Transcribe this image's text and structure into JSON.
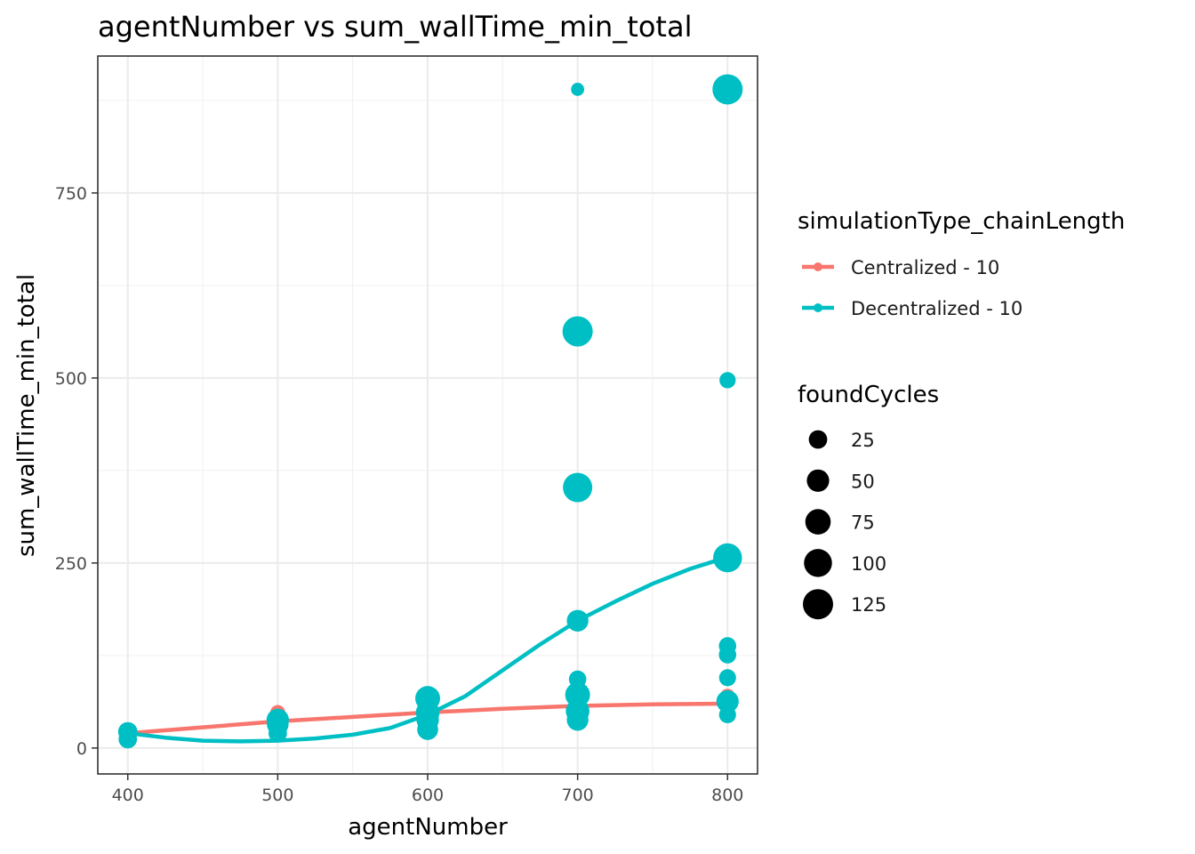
{
  "chart_data": {
    "type": "scatter",
    "title": "agentNumber  vs  sum_wallTime_min_total",
    "xlabel": "agentNumber",
    "ylabel": "sum_wallTime_min_total",
    "xlim": [
      380,
      820
    ],
    "ylim": [
      -35,
      935
    ],
    "x_ticks": [
      400,
      500,
      600,
      700,
      800
    ],
    "y_ticks": [
      0,
      250,
      500,
      750
    ],
    "grid": true,
    "legend_position": "right",
    "color_legend": {
      "title": "simulationType_chainLength",
      "entries": [
        {
          "label": "Centralized - 10",
          "color": "#F8766D"
        },
        {
          "label": "Decentralized - 10",
          "color": "#00BFC4"
        }
      ]
    },
    "size_legend": {
      "title": "foundCycles",
      "entries": [
        {
          "label": "25",
          "value": 25
        },
        {
          "label": "50",
          "value": 50
        },
        {
          "label": "75",
          "value": 75
        },
        {
          "label": "100",
          "value": 100
        },
        {
          "label": "125",
          "value": 125
        }
      ]
    },
    "series": [
      {
        "name": "Centralized - 10",
        "color": "#F8766D",
        "points": [
          {
            "x": 400,
            "y": 18,
            "size": 10
          },
          {
            "x": 400,
            "y": 22,
            "size": 10
          },
          {
            "x": 500,
            "y": 48,
            "size": 10
          },
          {
            "x": 500,
            "y": 40,
            "size": 10
          },
          {
            "x": 500,
            "y": 30,
            "size": 10
          },
          {
            "x": 600,
            "y": 58,
            "size": 10
          },
          {
            "x": 600,
            "y": 50,
            "size": 10
          },
          {
            "x": 600,
            "y": 45,
            "size": 10
          },
          {
            "x": 700,
            "y": 60,
            "size": 10
          },
          {
            "x": 700,
            "y": 55,
            "size": 10
          },
          {
            "x": 700,
            "y": 52,
            "size": 10
          },
          {
            "x": 800,
            "y": 70,
            "size": 10
          },
          {
            "x": 800,
            "y": 60,
            "size": 10
          },
          {
            "x": 800,
            "y": 55,
            "size": 10
          }
        ],
        "smooth": [
          [
            400,
            20
          ],
          [
            450,
            28
          ],
          [
            500,
            36
          ],
          [
            550,
            42
          ],
          [
            600,
            48
          ],
          [
            650,
            53
          ],
          [
            700,
            57
          ],
          [
            750,
            59
          ],
          [
            800,
            60
          ]
        ]
      },
      {
        "name": "Decentralized - 10",
        "color": "#00BFC4",
        "points": [
          {
            "x": 400,
            "y": 22,
            "size": 30
          },
          {
            "x": 400,
            "y": 12,
            "size": 25
          },
          {
            "x": 500,
            "y": 38,
            "size": 50
          },
          {
            "x": 500,
            "y": 32,
            "size": 45
          },
          {
            "x": 500,
            "y": 20,
            "size": 25
          },
          {
            "x": 600,
            "y": 67,
            "size": 70
          },
          {
            "x": 600,
            "y": 48,
            "size": 60
          },
          {
            "x": 600,
            "y": 38,
            "size": 50
          },
          {
            "x": 600,
            "y": 25,
            "size": 40
          },
          {
            "x": 700,
            "y": 890,
            "size": 5
          },
          {
            "x": 700,
            "y": 563,
            "size": 125
          },
          {
            "x": 700,
            "y": 352,
            "size": 115
          },
          {
            "x": 700,
            "y": 172,
            "size": 45
          },
          {
            "x": 700,
            "y": 93,
            "size": 20
          },
          {
            "x": 700,
            "y": 72,
            "size": 70
          },
          {
            "x": 700,
            "y": 50,
            "size": 60
          },
          {
            "x": 700,
            "y": 38,
            "size": 45
          },
          {
            "x": 800,
            "y": 890,
            "size": 125
          },
          {
            "x": 800,
            "y": 497,
            "size": 15
          },
          {
            "x": 800,
            "y": 257,
            "size": 110
          },
          {
            "x": 800,
            "y": 138,
            "size": 20
          },
          {
            "x": 800,
            "y": 126,
            "size": 20
          },
          {
            "x": 800,
            "y": 95,
            "size": 18
          },
          {
            "x": 800,
            "y": 63,
            "size": 50
          },
          {
            "x": 800,
            "y": 45,
            "size": 18
          }
        ],
        "smooth": [
          [
            400,
            20
          ],
          [
            425,
            14
          ],
          [
            450,
            10
          ],
          [
            475,
            9
          ],
          [
            500,
            10
          ],
          [
            525,
            13
          ],
          [
            550,
            18
          ],
          [
            575,
            27
          ],
          [
            600,
            45
          ],
          [
            625,
            70
          ],
          [
            650,
            105
          ],
          [
            675,
            140
          ],
          [
            700,
            172
          ],
          [
            725,
            198
          ],
          [
            750,
            222
          ],
          [
            775,
            242
          ],
          [
            800,
            258
          ]
        ]
      }
    ]
  }
}
